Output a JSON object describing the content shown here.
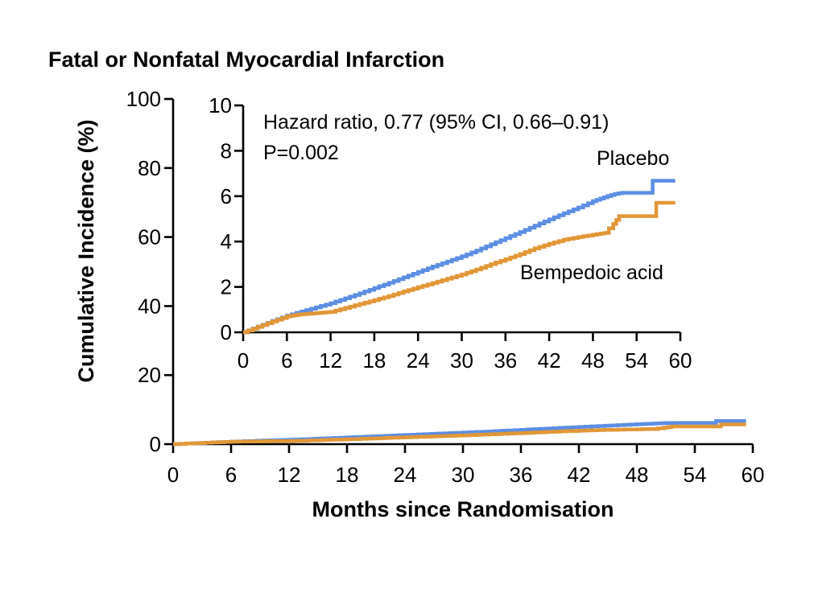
{
  "colors": {
    "placebo": "#5C8EE4",
    "bempedoic_acid": "#E29737",
    "axis": "#000000",
    "background": "#FFFFFF"
  },
  "chart_data": {
    "type": "line",
    "subtype": "kaplan-meier-cumulative-incidence",
    "title": "Fatal or Nonfatal Myocardial Infarction",
    "xlabel": "Months since Randomisation",
    "ylabel": "Cumulative Incidence (%)",
    "annotation": [
      "Hazard ratio, 0.77 (95% CI, 0.66–0.91)",
      "P=0.002"
    ],
    "grid": false,
    "legend_position": "inline-labels",
    "x_ticks": [
      0,
      6,
      12,
      18,
      24,
      30,
      36,
      42,
      48,
      54,
      60
    ],
    "main_axis": {
      "xlim": [
        0,
        60
      ],
      "ylim": [
        0,
        100
      ],
      "y_ticks": [
        0,
        20,
        40,
        60,
        80,
        100
      ]
    },
    "inset_axis": {
      "xlim": [
        0,
        60
      ],
      "ylim": [
        0,
        10
      ],
      "y_ticks": [
        0,
        2,
        4,
        6,
        8,
        10
      ]
    },
    "series": [
      {
        "name": "Placebo",
        "color": "#5C8EE4",
        "points": [
          [
            0,
            0
          ],
          [
            2,
            0.25
          ],
          [
            4,
            0.5
          ],
          [
            6,
            0.73
          ],
          [
            8,
            0.92
          ],
          [
            10,
            1.1
          ],
          [
            12,
            1.28
          ],
          [
            14,
            1.5
          ],
          [
            16,
            1.72
          ],
          [
            18,
            1.95
          ],
          [
            20,
            2.18
          ],
          [
            22,
            2.42
          ],
          [
            24,
            2.66
          ],
          [
            26,
            2.9
          ],
          [
            28,
            3.12
          ],
          [
            30,
            3.35
          ],
          [
            32,
            3.6
          ],
          [
            34,
            3.88
          ],
          [
            36,
            4.15
          ],
          [
            38,
            4.42
          ],
          [
            40,
            4.7
          ],
          [
            42,
            4.98
          ],
          [
            44,
            5.25
          ],
          [
            46,
            5.5
          ],
          [
            48,
            5.78
          ],
          [
            49.5,
            5.95
          ],
          [
            51,
            6.1
          ],
          [
            52,
            6.15
          ],
          [
            55.9,
            6.15
          ],
          [
            56.2,
            6.68
          ],
          [
            59.3,
            6.68
          ]
        ]
      },
      {
        "name": "Bempedoic acid",
        "color": "#E29737",
        "points": [
          [
            0,
            0
          ],
          [
            2,
            0.24
          ],
          [
            4,
            0.48
          ],
          [
            6,
            0.7
          ],
          [
            7.5,
            0.78
          ],
          [
            9,
            0.82
          ],
          [
            10.5,
            0.86
          ],
          [
            12,
            0.9
          ],
          [
            14,
            1.07
          ],
          [
            16,
            1.25
          ],
          [
            18,
            1.42
          ],
          [
            20,
            1.6
          ],
          [
            22,
            1.8
          ],
          [
            24,
            1.99
          ],
          [
            26,
            2.17
          ],
          [
            28,
            2.36
          ],
          [
            30,
            2.55
          ],
          [
            32,
            2.77
          ],
          [
            34,
            3.0
          ],
          [
            36,
            3.22
          ],
          [
            38,
            3.45
          ],
          [
            40,
            3.7
          ],
          [
            42,
            3.9
          ],
          [
            44,
            4.08
          ],
          [
            46,
            4.2
          ],
          [
            48,
            4.3
          ],
          [
            49.6,
            4.38
          ],
          [
            50.2,
            4.58
          ],
          [
            50.8,
            4.78
          ],
          [
            51.6,
            5.12
          ],
          [
            56.4,
            5.12
          ],
          [
            56.7,
            5.71
          ],
          [
            59.3,
            5.71
          ]
        ]
      }
    ]
  }
}
